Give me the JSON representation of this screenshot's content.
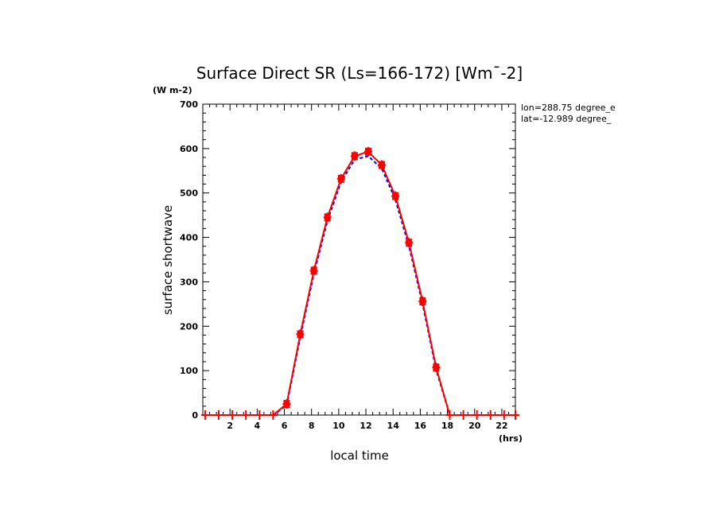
{
  "chart_data": {
    "type": "line",
    "title": "Surface Direct SR (Ls=166-172) [Wm¯-2]",
    "ylabel": "surface shortwave",
    "yunits": "(W m-2)",
    "xlabel": "local time",
    "xunits": "(hrs)",
    "xlim": [
      0,
      23
    ],
    "ylim": [
      0,
      700
    ],
    "xticks": [
      2,
      4,
      6,
      8,
      10,
      12,
      14,
      16,
      18,
      20,
      22
    ],
    "yticks": [
      0,
      100,
      200,
      300,
      400,
      500,
      600,
      700
    ],
    "annotations": [
      "lon=288.75 degree_e",
      "lat=-12.989 degree_"
    ],
    "grid": false,
    "series": [
      {
        "color": "#ff0000",
        "style": "solid-with-markers",
        "x": [
          0.17,
          1.17,
          2.17,
          3.17,
          4.17,
          5.17,
          6.17,
          7.17,
          8.17,
          9.17,
          10.17,
          11.17,
          12.17,
          13.17,
          14.17,
          15.17,
          16.17,
          17.17,
          18.17,
          19.17,
          20.17,
          21.17,
          22.17,
          23.0
        ],
        "y": [
          0,
          0,
          0,
          0,
          0,
          0,
          25,
          182,
          325,
          445,
          532,
          583,
          593,
          563,
          493,
          388,
          256,
          107,
          0,
          0,
          0,
          0,
          0,
          0
        ]
      },
      {
        "color": "#0000ff",
        "style": "dashed",
        "x": [
          5.17,
          6.17,
          7.17,
          8.17,
          9.17,
          10.17,
          11.17,
          12.17,
          13.17,
          14.17,
          15.17,
          16.17,
          17.17,
          18.17
        ],
        "y": [
          0,
          22,
          175,
          318,
          437,
          525,
          575,
          583,
          555,
          485,
          380,
          250,
          102,
          0
        ]
      }
    ]
  }
}
